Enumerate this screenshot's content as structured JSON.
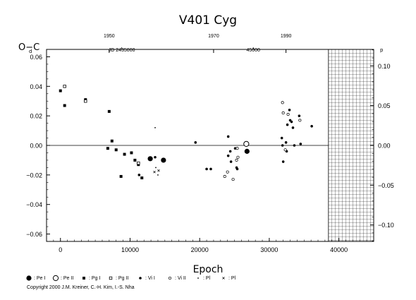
{
  "chart_data": {
    "type": "scatter",
    "title": "V401  Cyg",
    "xlabel": "Epoch",
    "ylabel": "O−C",
    "ylabel_sup": "d",
    "y2label_sup": "p",
    "xlim": [
      -2000,
      45000
    ],
    "ylim": [
      -0.065,
      0.065
    ],
    "y2lim": [
      -0.1207,
      0.1207
    ],
    "grid": false,
    "x_ticks": [
      0,
      10000,
      20000,
      30000,
      40000
    ],
    "x_tick_labels": [
      "0",
      "10000",
      "20000",
      "30000",
      "40000"
    ],
    "y_ticks": [
      -0.06,
      -0.04,
      -0.02,
      0.0,
      0.02,
      0.04,
      0.06
    ],
    "y_tick_labels": [
      "−0.06",
      "−0.04",
      "−0.02",
      "0.00",
      "0.02",
      "0.04",
      "0.06"
    ],
    "y2_ticks": [
      -0.1,
      -0.05,
      0.0,
      0.05,
      0.1
    ],
    "y2_tick_labels": [
      "−0.10",
      "−0.05",
      "0.00",
      "0.05",
      "0.10"
    ],
    "top_year_ticks": [
      {
        "epoch": 7000,
        "label": "1950"
      },
      {
        "epoch": 22000,
        "label": "1970"
      },
      {
        "epoch": 32400,
        "label": "1990"
      }
    ],
    "top_jd_labels": [
      {
        "epoch": 8800,
        "label": "JD 2435000"
      },
      {
        "epoch": 27700,
        "label": "45000"
      }
    ],
    "hatched_region": {
      "x_from": 38500,
      "x_to": 45000
    },
    "zero_line": 0.0,
    "series": [
      {
        "name": ": Pe I",
        "marker": "big-filled",
        "points": [
          [
            12900,
            -0.009
          ],
          [
            14800,
            -0.01
          ],
          [
            26800,
            -0.004
          ]
        ]
      },
      {
        "name": ": Pe II",
        "marker": "big-open",
        "points": [
          [
            26700,
            0.001
          ]
        ]
      },
      {
        "name": ": Pg I",
        "marker": "filled-square",
        "points": [
          [
            0,
            0.037
          ],
          [
            600,
            0.027
          ],
          [
            3600,
            0.031
          ],
          [
            6800,
            -0.002
          ],
          [
            7000,
            0.023
          ],
          [
            7400,
            0.003
          ],
          [
            8000,
            -0.003
          ],
          [
            8700,
            -0.021
          ],
          [
            9200,
            -0.006
          ],
          [
            10200,
            -0.005
          ],
          [
            10700,
            -0.01
          ],
          [
            11200,
            -0.013
          ],
          [
            11700,
            -0.022
          ]
        ]
      },
      {
        "name": ": Pg II",
        "marker": "open-square",
        "points": [
          [
            600,
            0.04
          ],
          [
            3600,
            0.03
          ],
          [
            11200,
            -0.012
          ]
        ]
      },
      {
        "name": ": Vi I",
        "marker": "filled-circle",
        "points": [
          [
            11300,
            -0.02
          ],
          [
            13600,
            -0.008
          ],
          [
            19400,
            0.002
          ],
          [
            21000,
            -0.016
          ],
          [
            21600,
            -0.016
          ],
          [
            24100,
            0.006
          ],
          [
            24100,
            -0.007
          ],
          [
            24400,
            -0.004
          ],
          [
            24500,
            -0.011
          ],
          [
            25100,
            -0.002
          ],
          [
            25300,
            -0.015
          ],
          [
            25400,
            -0.016
          ],
          [
            31800,
            0.005
          ],
          [
            31900,
            0.0
          ],
          [
            32000,
            -0.011
          ],
          [
            32400,
            0.002
          ],
          [
            32500,
            -0.004
          ],
          [
            32600,
            0.014
          ],
          [
            32900,
            0.024
          ],
          [
            33000,
            0.017
          ],
          [
            33200,
            0.016
          ],
          [
            33400,
            0.012
          ],
          [
            33600,
            0.0
          ],
          [
            34300,
            0.02
          ],
          [
            34500,
            0.001
          ],
          [
            36100,
            0.013
          ]
        ]
      },
      {
        "name": ": Vi II",
        "marker": "open-circle",
        "points": [
          [
            23600,
            -0.021
          ],
          [
            24000,
            -0.018
          ],
          [
            24800,
            -0.023
          ],
          [
            25300,
            -0.01
          ],
          [
            25400,
            -0.002
          ],
          [
            25500,
            -0.008
          ],
          [
            31900,
            0.029
          ],
          [
            32000,
            0.022
          ],
          [
            32300,
            -0.003
          ],
          [
            32700,
            0.021
          ],
          [
            34400,
            0.017
          ]
        ]
      },
      {
        "name": ": Pl",
        "marker": "tiny-dot",
        "points": [
          [
            13600,
            0.012
          ],
          [
            13700,
            -0.015
          ],
          [
            14000,
            -0.02
          ]
        ]
      },
      {
        "name": ": Pl",
        "marker": "cross",
        "points": [
          [
            13500,
            -0.018
          ],
          [
            14100,
            -0.017
          ]
        ]
      }
    ]
  },
  "legend": [
    {
      "label": ": Pe I",
      "marker": "big-filled"
    },
    {
      "label": ": Pe II",
      "marker": "big-open"
    },
    {
      "label": ": Pg I",
      "marker": "filled-square"
    },
    {
      "label": ": Pg II",
      "marker": "open-square"
    },
    {
      "label": ": Vi I",
      "marker": "filled-circle"
    },
    {
      "label": ": Vi II",
      "marker": "open-circle"
    },
    {
      "label": ": Pl",
      "marker": "tiny-dot"
    },
    {
      "label": ": Pl",
      "marker": "cross"
    }
  ],
  "copyright": "Copyright 2000 J.M. Kreiner, C.-H. Kim, I.-S. Nha"
}
